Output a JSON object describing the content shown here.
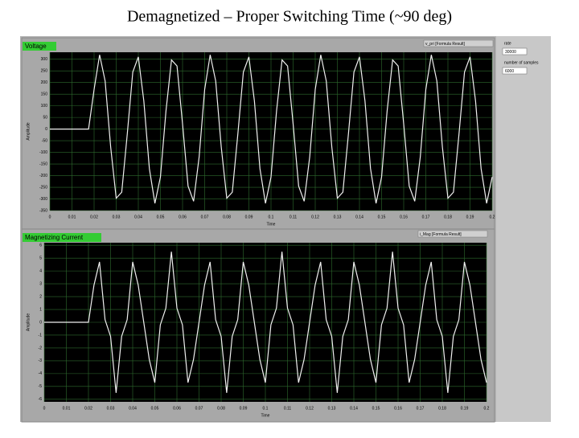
{
  "title": "Demagnetized – Proper Switching Time (~90 deg)",
  "controls": [
    {
      "label": "rate",
      "value": "30000"
    },
    {
      "label": "number of samples",
      "value": "6000"
    }
  ],
  "chart_data": [
    {
      "type": "line",
      "title": "Voltage",
      "x_label": "Time",
      "y_label": "Amplitude",
      "x": [
        0,
        0.0025,
        0.005,
        0.0075,
        0.01,
        0.0125,
        0.015,
        0.0175,
        0.02,
        0.0225,
        0.025,
        0.0275,
        0.03,
        0.0325,
        0.035,
        0.0375,
        0.04,
        0.0425,
        0.045,
        0.0475,
        0.05,
        0.0525,
        0.055,
        0.0575,
        0.06,
        0.0625,
        0.065,
        0.0675,
        0.07,
        0.0725,
        0.075,
        0.0775,
        0.08,
        0.0825,
        0.085,
        0.0875,
        0.09,
        0.0925,
        0.095,
        0.0975,
        0.1,
        0.1025,
        0.105,
        0.1075,
        0.11,
        0.1125,
        0.115,
        0.1175,
        0.12,
        0.1225,
        0.125,
        0.1275,
        0.13,
        0.1325,
        0.135,
        0.1375,
        0.14,
        0.1425,
        0.145,
        0.1475,
        0.15,
        0.1525,
        0.155,
        0.1575,
        0.16,
        0.1625,
        0.165,
        0.1675,
        0.17,
        0.1725,
        0.175,
        0.1775,
        0.18,
        0.1825,
        0.185,
        0.1875,
        0.19,
        0.1925,
        0.195,
        0.1975,
        0.2
      ],
      "series": [
        {
          "name": "v_pri [Formula Result]",
          "color": "#f0f0f0",
          "values": [
            0,
            0,
            0,
            0,
            0,
            0,
            0,
            0,
            170,
            319,
            206,
            -77,
            -297,
            -271,
            -22,
            245,
            310,
            120,
            -170,
            -319,
            -206,
            77,
            297,
            271,
            22,
            -245,
            -310,
            -120,
            170,
            319,
            206,
            -77,
            -297,
            -271,
            -22,
            245,
            310,
            120,
            -170,
            -319,
            -206,
            77,
            297,
            271,
            22,
            -245,
            -310,
            -120,
            170,
            319,
            206,
            -77,
            -297,
            -271,
            -22,
            245,
            310,
            120,
            -170,
            -319,
            -206,
            77,
            297,
            271,
            22,
            -245,
            -310,
            -120,
            170,
            319,
            206,
            -77,
            -297,
            -271,
            -22,
            245,
            310,
            120,
            -170,
            -319,
            -206
          ]
        }
      ],
      "xlim": [
        0,
        0.2
      ],
      "xticks": [
        0,
        0.01,
        0.02,
        0.03,
        0.04,
        0.05,
        0.06,
        0.07,
        0.08,
        0.09,
        0.1,
        0.11,
        0.12,
        0.13,
        0.14,
        0.15,
        0.16,
        0.17,
        0.18,
        0.19,
        0.2
      ],
      "ylim": [
        -350,
        330
      ],
      "yticks": [
        -350,
        -300,
        -250,
        -200,
        -150,
        -100,
        -50,
        0,
        50,
        100,
        150,
        200,
        250,
        300
      ],
      "grid": true
    },
    {
      "type": "line",
      "title": "Magnetizing Current",
      "x_label": "Time",
      "y_label": "Amplitude",
      "x": [
        0,
        0.0025,
        0.005,
        0.0075,
        0.01,
        0.0125,
        0.015,
        0.0175,
        0.02,
        0.0225,
        0.025,
        0.0275,
        0.03,
        0.0325,
        0.035,
        0.0375,
        0.04,
        0.0425,
        0.045,
        0.0475,
        0.05,
        0.0525,
        0.055,
        0.0575,
        0.06,
        0.0625,
        0.065,
        0.0675,
        0.07,
        0.0725,
        0.075,
        0.0775,
        0.08,
        0.0825,
        0.085,
        0.0875,
        0.09,
        0.0925,
        0.095,
        0.0975,
        0.1,
        0.1025,
        0.105,
        0.1075,
        0.11,
        0.1125,
        0.115,
        0.1175,
        0.12,
        0.1225,
        0.125,
        0.1275,
        0.13,
        0.1325,
        0.135,
        0.1375,
        0.14,
        0.1425,
        0.145,
        0.1475,
        0.15,
        0.1525,
        0.155,
        0.1575,
        0.16,
        0.1625,
        0.165,
        0.1675,
        0.17,
        0.1725,
        0.175,
        0.1775,
        0.18,
        0.1825,
        0.185,
        0.1875,
        0.19,
        0.1925,
        0.195,
        0.1975,
        0.2
      ],
      "series": [
        {
          "name": "i_Mag [Formula Result]",
          "color": "#f0f0f0",
          "values": [
            0,
            0,
            0,
            0,
            0,
            0,
            0,
            0,
            0,
            2.9,
            4.7,
            0.2,
            -1.1,
            -5.5,
            -1.1,
            0.2,
            4.7,
            2.9,
            0,
            -2.9,
            -4.7,
            -0.2,
            1.1,
            5.5,
            1.1,
            -0.2,
            -4.7,
            -2.9,
            0,
            2.9,
            4.7,
            0.2,
            -1.1,
            -5.5,
            -1.1,
            0.2,
            4.7,
            2.9,
            0,
            -2.9,
            -4.7,
            -0.2,
            1.1,
            5.5,
            1.1,
            -0.2,
            -4.7,
            -2.9,
            0,
            2.9,
            4.7,
            0.2,
            -1.1,
            -5.5,
            -1.1,
            0.2,
            4.7,
            2.9,
            0,
            -2.9,
            -4.7,
            -0.2,
            1.1,
            5.5,
            1.1,
            -0.2,
            -4.7,
            -2.9,
            0,
            2.9,
            4.7,
            0.2,
            -1.1,
            -5.5,
            -1.1,
            0.2,
            4.7,
            2.9,
            0,
            -2.9,
            -4.7
          ]
        }
      ],
      "xlim": [
        0,
        0.2
      ],
      "xticks": [
        0,
        0.01,
        0.02,
        0.03,
        0.04,
        0.05,
        0.06,
        0.07,
        0.08,
        0.09,
        0.1,
        0.11,
        0.12,
        0.13,
        0.14,
        0.15,
        0.16,
        0.17,
        0.18,
        0.19,
        0.2
      ],
      "ylim": [
        -6.2,
        6.2
      ],
      "yticks": [
        -6,
        -5,
        -4,
        -3,
        -2,
        -1,
        0,
        1,
        2,
        3,
        4,
        5,
        6
      ],
      "grid": true
    }
  ]
}
